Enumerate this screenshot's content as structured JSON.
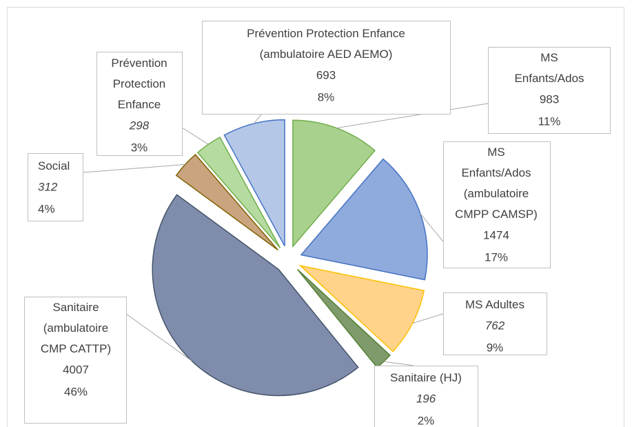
{
  "chart_data": {
    "type": "pie",
    "categories": [
      "MS\nEnfants/Ados",
      "MS\nEnfants/Ados\n(ambulatoire\nCMPP CAMSP)",
      "MS Adultes",
      "Sanitaire (HJ)",
      "Sanitaire\n(ambulatoire\nCMP CATTP)",
      "Social",
      "Prévention\nProtection\nEnfance",
      "Prévention Protection Enfance\n(ambulatoire AED AEMO)"
    ],
    "values": [
      983,
      1474,
      762,
      196,
      4007,
      312,
      298,
      693
    ],
    "percent_labels": [
      "11%",
      "17%",
      "9%",
      "2%",
      "46%",
      "4%",
      "3%",
      "8%"
    ],
    "italic_values": [
      false,
      false,
      true,
      true,
      false,
      true,
      true,
      false
    ],
    "colors": [
      "#a9d18e",
      "#8faadc",
      "#ffd38a",
      "#7f9a6b",
      "#7f8cab",
      "#c9a47f",
      "#b5dba0",
      "#b4c7e7"
    ],
    "border_colors": [
      "#70ad47",
      "#4472c4",
      "#ffc000",
      "#548235",
      "#44546a",
      "#7f6000",
      "#70ad47",
      "#4472c4"
    ]
  }
}
